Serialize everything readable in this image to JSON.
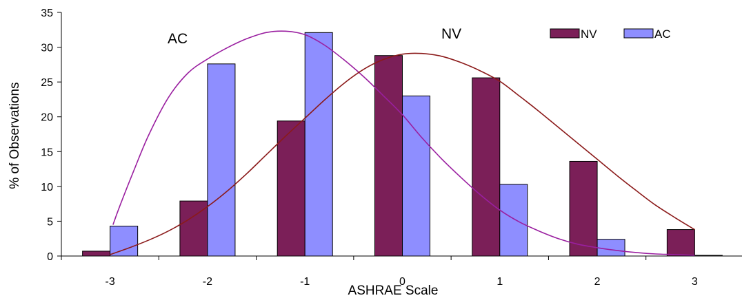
{
  "chart_data": {
    "type": "bar",
    "title": "",
    "xlabel": "ASHRAE Scale",
    "ylabel": "% of Observations",
    "categories": [
      "-3",
      "-2",
      "-1",
      "0",
      "1",
      "2",
      "3"
    ],
    "ylim": [
      0,
      35
    ],
    "yticks": [
      0,
      5,
      10,
      15,
      20,
      25,
      30,
      35
    ],
    "grid": false,
    "legend_position": "top-right",
    "series": [
      {
        "name": "NV",
        "values": [
          0.7,
          7.9,
          19.4,
          28.8,
          25.6,
          13.6,
          3.8
        ],
        "color": "#7b1f58"
      },
      {
        "name": "AC",
        "values": [
          4.3,
          27.6,
          32.1,
          23.0,
          10.3,
          2.4,
          0.1
        ],
        "color": "#8e8eff"
      }
    ],
    "curves": [
      {
        "series": "AC",
        "color": "#9a1fa0",
        "x": [
          -2.97,
          -2.9,
          -2.75,
          -2.6,
          -2.4,
          -2.2,
          -2.0,
          -1.8,
          -1.6,
          -1.4,
          -1.2,
          -1.0,
          -0.8,
          -0.6,
          -0.4,
          -0.2,
          0.0,
          0.2,
          0.4,
          0.6,
          0.8,
          1.0,
          1.2,
          1.4,
          1.6,
          1.8,
          2.0,
          2.2,
          2.4,
          2.6,
          2.8,
          3.0
        ],
        "y": [
          4.5,
          7.2,
          12.5,
          17.5,
          22.8,
          26.3,
          28.3,
          29.9,
          31.2,
          32.1,
          32.3,
          31.8,
          30.3,
          28.2,
          25.8,
          23.1,
          20.3,
          17.0,
          14.0,
          11.3,
          8.8,
          6.6,
          4.9,
          3.6,
          2.5,
          1.7,
          1.2,
          0.8,
          0.5,
          0.3,
          0.2,
          0.1
        ]
      },
      {
        "series": "NV",
        "color": "#8b1a1a",
        "x": [
          -3.0,
          -2.8,
          -2.6,
          -2.4,
          -2.2,
          -2.0,
          -1.8,
          -1.6,
          -1.4,
          -1.2,
          -1.0,
          -0.8,
          -0.6,
          -0.4,
          -0.2,
          0.0,
          0.2,
          0.4,
          0.6,
          0.8,
          1.0,
          1.2,
          1.4,
          1.6,
          1.8,
          2.0,
          2.2,
          2.4,
          2.6,
          2.8,
          3.0
        ],
        "y": [
          0.2,
          1.2,
          2.3,
          3.6,
          5.2,
          7.1,
          9.3,
          11.8,
          14.5,
          17.2,
          19.8,
          22.4,
          24.8,
          26.8,
          28.2,
          29.0,
          29.1,
          28.7,
          27.8,
          26.6,
          25.1,
          23.0,
          20.8,
          18.5,
          16.2,
          13.9,
          11.6,
          9.4,
          7.3,
          5.5,
          3.8
        ]
      }
    ],
    "annotations": [
      {
        "text": "AC",
        "near": "-2.0"
      },
      {
        "text": "NV",
        "near": "0.5"
      }
    ]
  }
}
